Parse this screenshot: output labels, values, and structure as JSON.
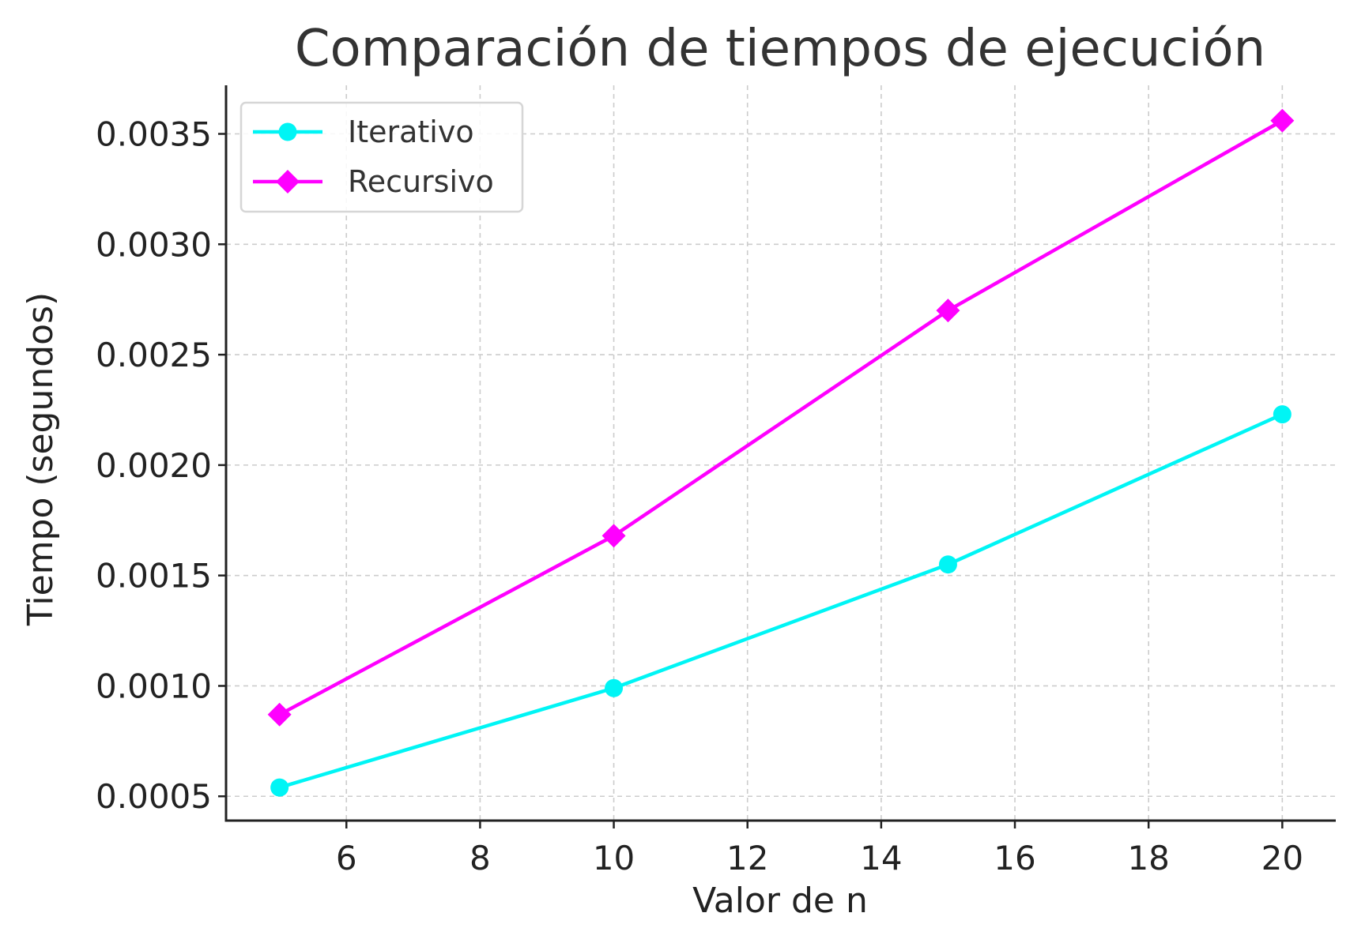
{
  "chart_data": {
    "type": "line",
    "title": "Comparación de tiempos de ejecución",
    "xlabel": "Valor de n",
    "ylabel": "Tiempo (segundos)",
    "x": [
      5,
      10,
      15,
      20
    ],
    "xlim": [
      4.2,
      20.8
    ],
    "ylim": [
      0.00039,
      0.00372
    ],
    "xticks": [
      6,
      8,
      10,
      12,
      14,
      16,
      18,
      20
    ],
    "yticks": [
      0.0005,
      0.001,
      0.0015,
      0.002,
      0.0025,
      0.003,
      0.0035
    ],
    "ytick_labels": [
      "0.0005",
      "0.0010",
      "0.0015",
      "0.0020",
      "0.0025",
      "0.0030",
      "0.0035"
    ],
    "grid": true,
    "legend_position": "top-left",
    "series": [
      {
        "name": "Iterativo",
        "values": [
          0.00054,
          0.00099,
          0.00155,
          0.00223
        ],
        "color": "#00f5f5",
        "marker": "circle"
      },
      {
        "name": "Recursivo",
        "values": [
          0.00087,
          0.00168,
          0.0027,
          0.00356
        ],
        "color": "#ff00ff",
        "marker": "diamond"
      }
    ]
  }
}
